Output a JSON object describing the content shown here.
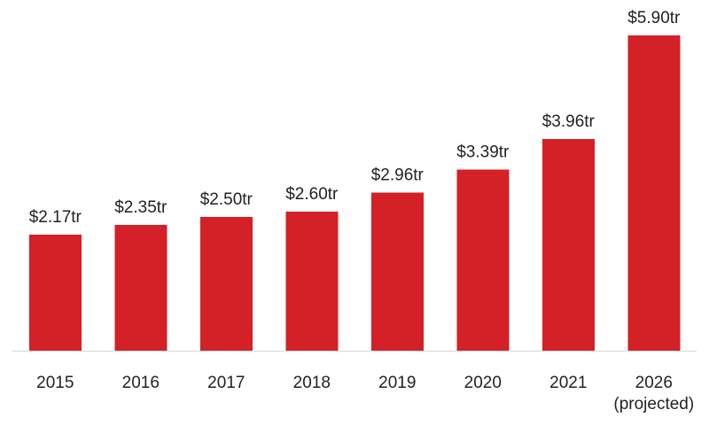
{
  "chart_data": {
    "type": "bar",
    "categories": [
      "2015",
      "2016",
      "2017",
      "2018",
      "2019",
      "2020",
      "2021",
      "2026\n(projected)"
    ],
    "values": [
      2.17,
      2.35,
      2.5,
      2.6,
      2.96,
      3.39,
      3.96,
      5.9
    ],
    "data_labels": [
      "$2.17tr",
      "$2.35tr",
      "$2.50tr",
      "$2.60tr",
      "$2.96tr",
      "$3.39tr",
      "$3.96tr",
      "$5.90tr"
    ],
    "title": "",
    "xlabel": "",
    "ylabel": "",
    "ylim": [
      0,
      6.2
    ],
    "grid": false,
    "legend": "none",
    "bar_color": "#d42027",
    "baseline_color": "#d6d6d6"
  }
}
